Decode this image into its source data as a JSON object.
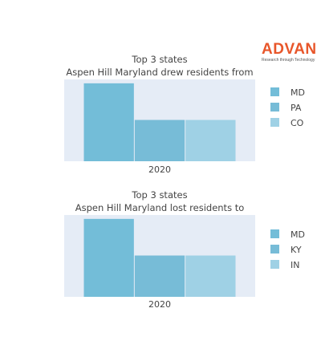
{
  "logo": {
    "brand": "ADVAN",
    "tagline": "Research through Technology",
    "color": "#e8562a"
  },
  "plot_background": "#e5ecf6",
  "chart_data": [
    {
      "type": "bar",
      "title": "Top 3 states",
      "subtitle": "Aspen Hill Maryland drew residents from",
      "categories": [
        "2020"
      ],
      "series": [
        {
          "name": "MD",
          "values": [
            100
          ],
          "color": "#73bdd8"
        },
        {
          "name": "PA",
          "values": [
            53
          ],
          "color": "#77bcd7"
        },
        {
          "name": "CO",
          "values": [
            53
          ],
          "color": "#9fd1e5"
        }
      ],
      "ylim": [
        0,
        105
      ],
      "grid": false,
      "legend_position": "right"
    },
    {
      "type": "bar",
      "title": "Top 3 states",
      "subtitle": "Aspen Hill Maryland lost residents to",
      "categories": [
        "2020"
      ],
      "series": [
        {
          "name": "MD",
          "values": [
            100
          ],
          "color": "#73bdd8"
        },
        {
          "name": "KY",
          "values": [
            53
          ],
          "color": "#77bcd7"
        },
        {
          "name": "IN",
          "values": [
            53
          ],
          "color": "#9fd1e5"
        }
      ],
      "ylim": [
        0,
        105
      ],
      "grid": false,
      "legend_position": "right"
    }
  ]
}
